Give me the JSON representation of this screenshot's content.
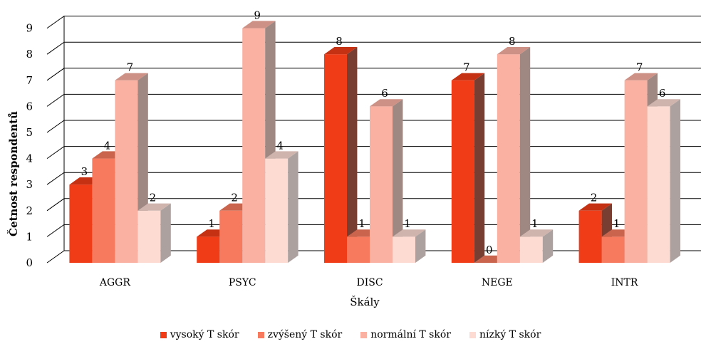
{
  "chart_data": {
    "type": "bar",
    "categories": [
      "AGGR",
      "PSYC",
      "DISC",
      "NEGE",
      "INTR"
    ],
    "series": [
      {
        "name": "vysoký T skór",
        "values": [
          3,
          1,
          8,
          7,
          2
        ],
        "color": "#f03c17"
      },
      {
        "name": "zvýšený T skór",
        "values": [
          4,
          2,
          1,
          0,
          1
        ],
        "color": "#f87a5e"
      },
      {
        "name": "normální T skór",
        "values": [
          7,
          9,
          6,
          8,
          7
        ],
        "color": "#fbb1a2"
      },
      {
        "name": "nízký T skór",
        "values": [
          2,
          4,
          1,
          1,
          6
        ],
        "color": "#fddbd3"
      }
    ],
    "xlabel": "Škály",
    "ylabel": "Četnost respondentů",
    "ylim": [
      0,
      9
    ],
    "yticks": [
      0,
      1,
      2,
      3,
      4,
      5,
      6,
      7,
      8,
      9
    ],
    "grid": true,
    "three_d": true,
    "legend_position": "bottom"
  }
}
